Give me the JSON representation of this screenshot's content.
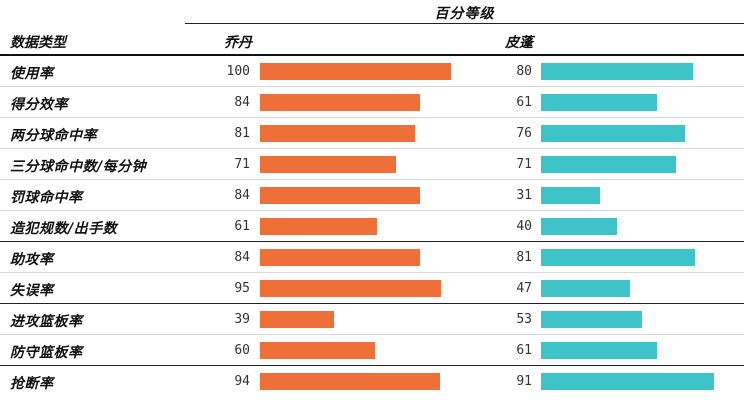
{
  "chart_data": {
    "type": "bar",
    "title": "百分等级",
    "category_header": "数据类型",
    "categories": [
      "使用率",
      "得分效率",
      "两分球命中率",
      "三分球命中数/每分钟",
      "罚球命中率",
      "造犯规数/出手数",
      "助攻率",
      "失误率",
      "进攻篮板率",
      "防守篮板率",
      "抢断率"
    ],
    "series": [
      {
        "name": "乔丹",
        "color": "#ee7038",
        "values": [
          100,
          84,
          81,
          71,
          84,
          61,
          84,
          95,
          39,
          60,
          94
        ]
      },
      {
        "name": "皮蓬",
        "color": "#3ec4c8",
        "values": [
          80,
          61,
          76,
          71,
          31,
          40,
          81,
          47,
          53,
          61,
          91
        ]
      }
    ],
    "xlim": [
      0,
      100
    ],
    "group_separators_after": [
      5,
      7,
      9
    ],
    "grid": false,
    "legend": "column headers"
  }
}
